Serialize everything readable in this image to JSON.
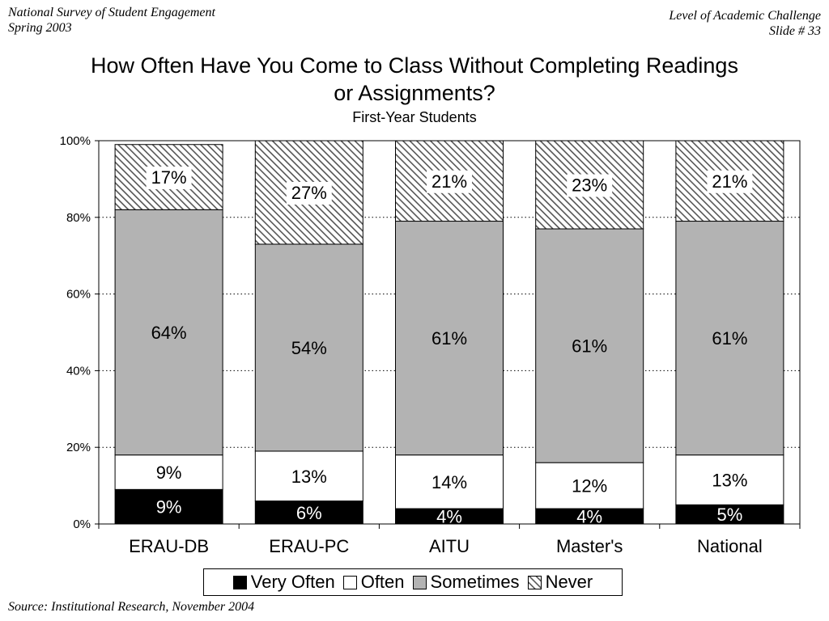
{
  "header": {
    "left_line1": "National Survey of Student Engagement",
    "left_line2": "Spring 2003",
    "right_line1": "Level of Academic Challenge",
    "right_line2": "Slide # 33"
  },
  "source": "Source: Institutional Research, November 2004",
  "colors": {
    "very_often": "#000000",
    "often": "#ffffff",
    "sometimes": "#b3b3b3",
    "never_pattern": "#555555"
  },
  "chart_data": {
    "type": "bar",
    "stacked": true,
    "title": "How Often Have You Come to Class Without Completing Readings or Assignments?",
    "subtitle": "First-Year Students",
    "categories": [
      "ERAU-DB",
      "ERAU-PC",
      "AITU",
      "Master's",
      "National"
    ],
    "series": [
      {
        "name": "Very Often",
        "values": [
          9,
          6,
          4,
          4,
          5
        ],
        "labels": [
          "9%",
          "6%",
          "4%",
          "4%",
          "5%"
        ]
      },
      {
        "name": "Often",
        "values": [
          9,
          13,
          14,
          12,
          13
        ],
        "labels": [
          "9%",
          "13%",
          "14%",
          "12%",
          "13%"
        ]
      },
      {
        "name": "Sometimes",
        "values": [
          64,
          54,
          61,
          61,
          61
        ],
        "labels": [
          "64%",
          "54%",
          "61%",
          "61%",
          "61%"
        ]
      },
      {
        "name": "Never",
        "values": [
          17,
          27,
          21,
          23,
          21
        ],
        "labels": [
          "17%",
          "27%",
          "21%",
          "23%",
          "21%"
        ]
      }
    ],
    "ylim": [
      0,
      100
    ],
    "yticks": [
      "0%",
      "20%",
      "40%",
      "60%",
      "80%",
      "100%"
    ],
    "grid": "horizontal-dotted",
    "legend_position": "bottom"
  }
}
